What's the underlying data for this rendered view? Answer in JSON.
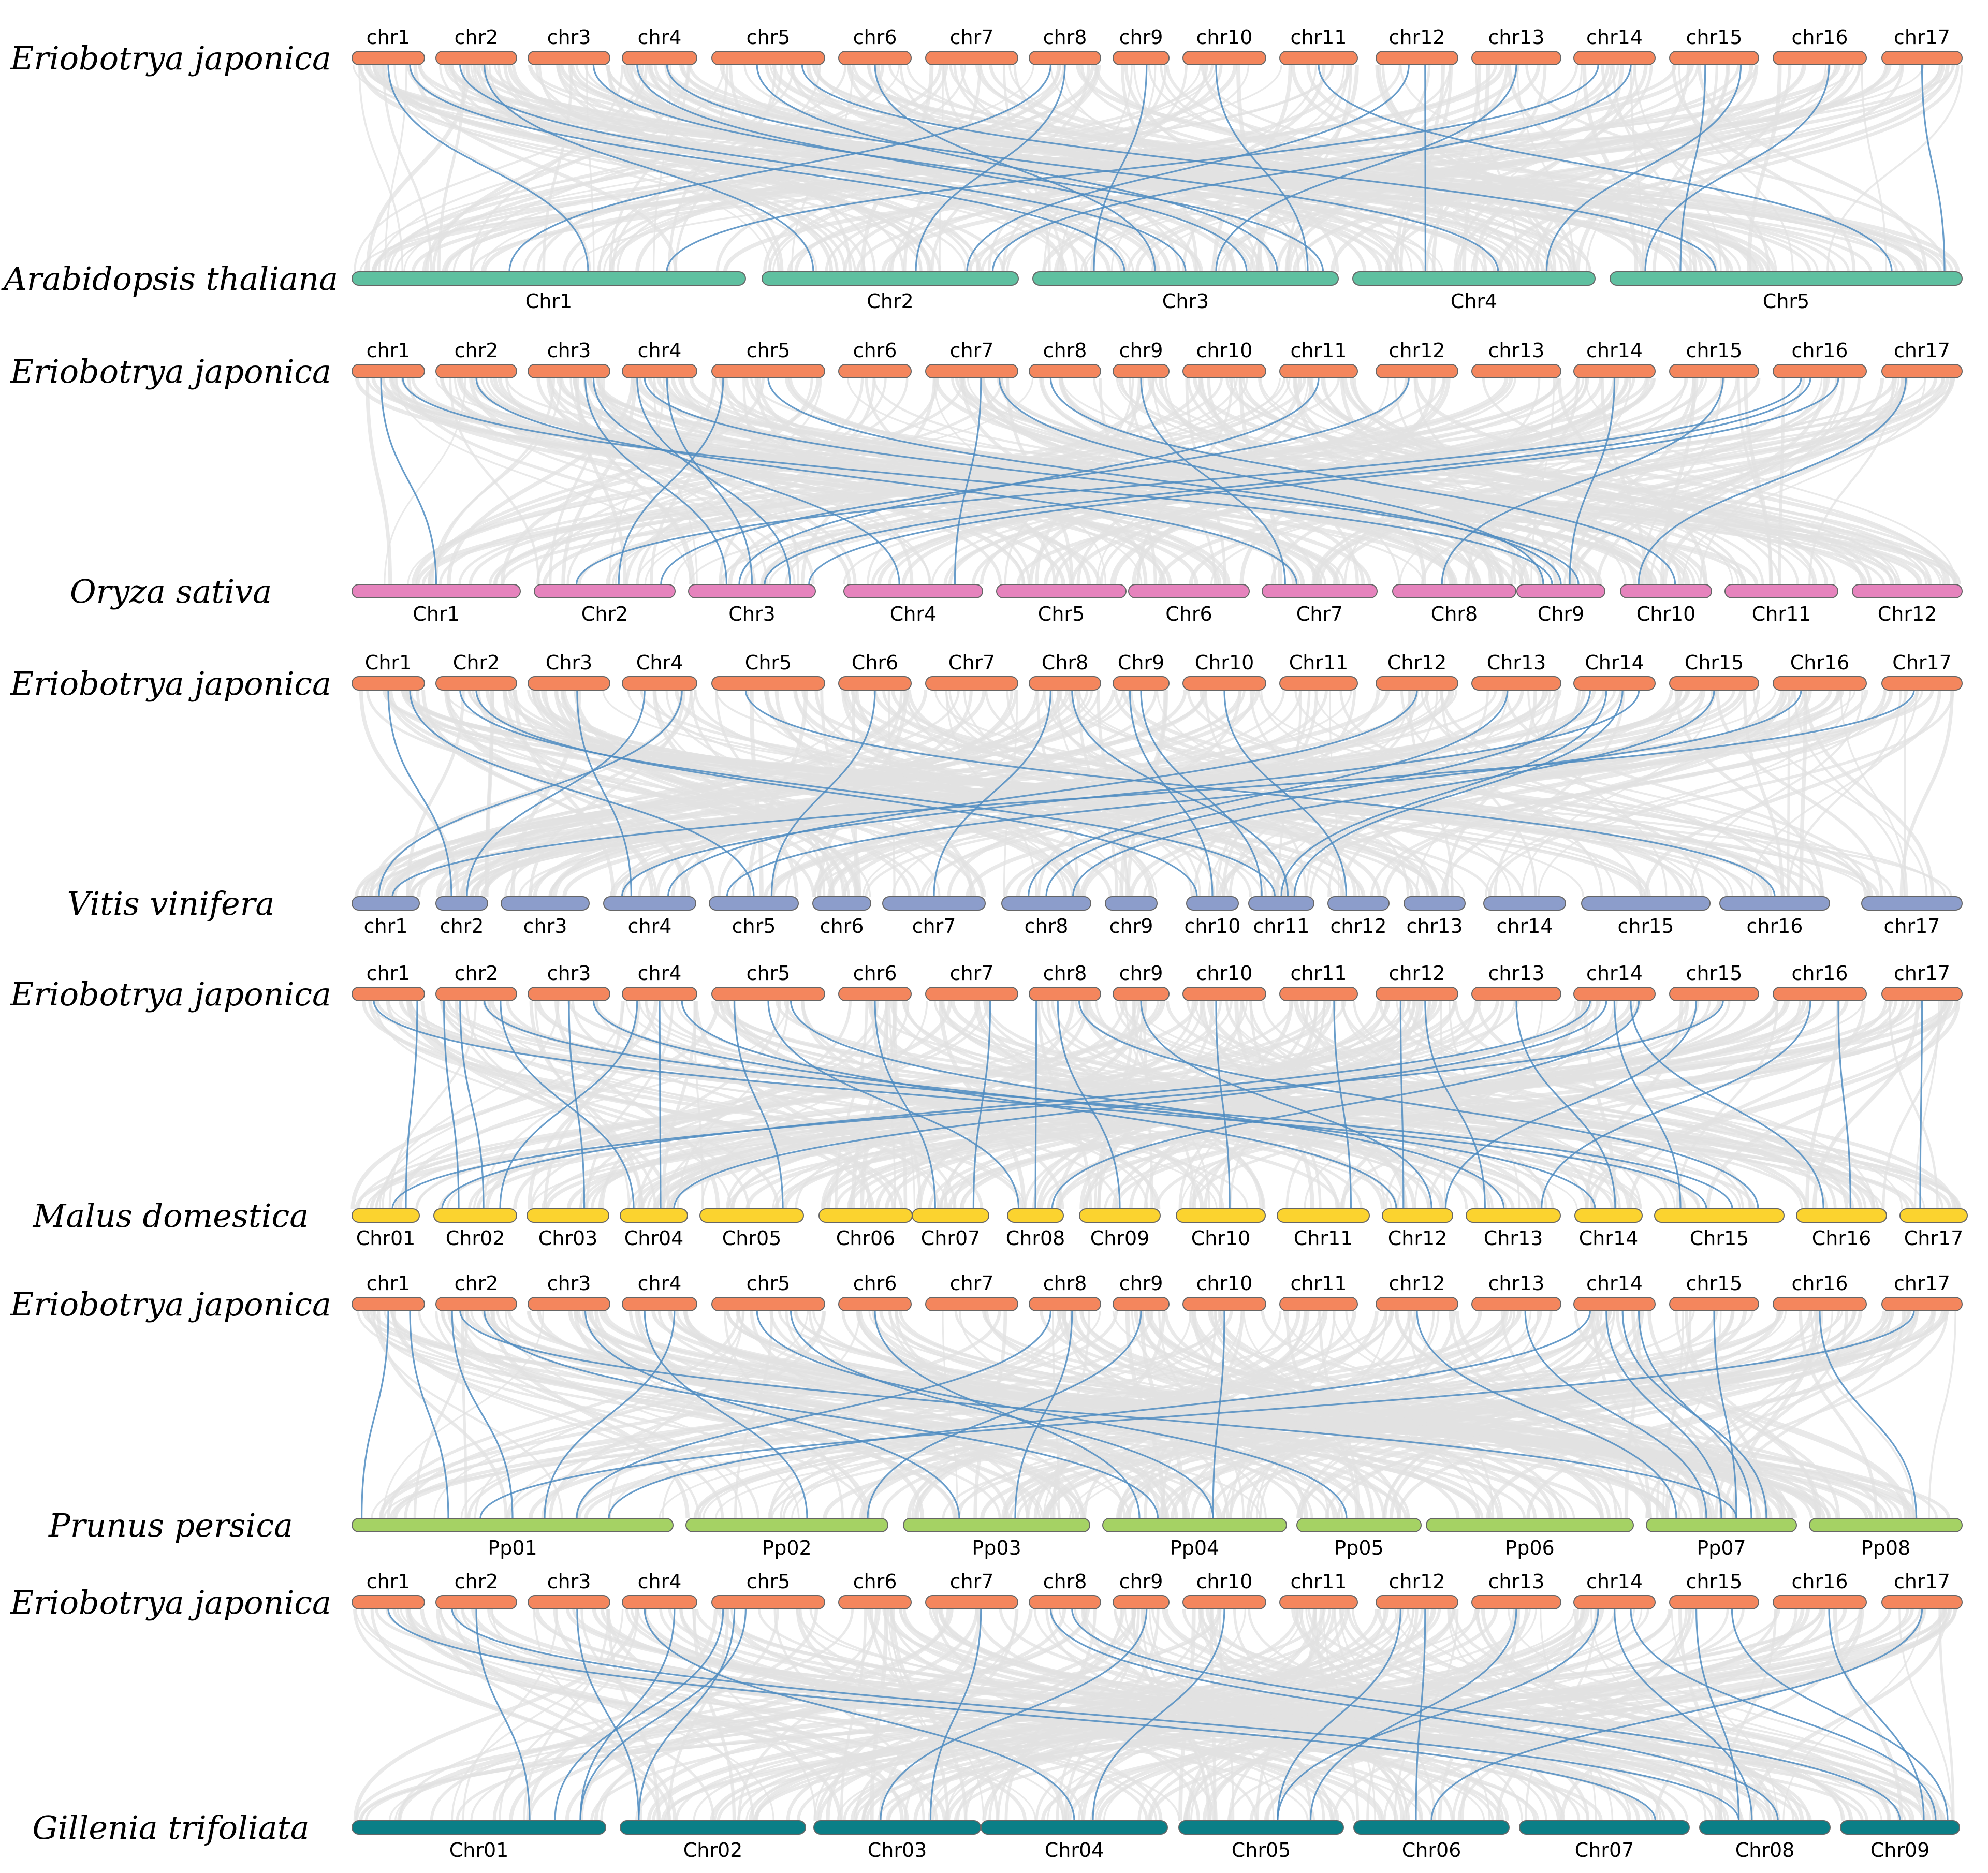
{
  "palette": {
    "background_link": "#e2e2e2",
    "highlight_link": "#4f8cc1",
    "bar_stroke": "#666666"
  },
  "panels": [
    {
      "top_species": "Eriobotrya japonica",
      "bottom_species": "Arabidopsis thaliana",
      "top_color": "#f4865d",
      "bottom_color": "#5fc0a0",
      "top_chromosomes": [
        "chr1",
        "chr2",
        "chr3",
        "chr4",
        "chr5",
        "chr6",
        "chr7",
        "chr8",
        "chr9",
        "chr10",
        "chr11",
        "chr12",
        "chr13",
        "chr14",
        "chr15",
        "chr16",
        "chr17"
      ],
      "bottom_chromosomes": [
        "Chr1",
        "Chr2",
        "Chr3",
        "Chr4",
        "Chr5"
      ],
      "links": [
        [
          0,
          0.5,
          0,
          0.6
        ],
        [
          0,
          0.8,
          2,
          0.3
        ],
        [
          1,
          0.3,
          2,
          0.5
        ],
        [
          1,
          0.6,
          1,
          0.2
        ],
        [
          3,
          0.2,
          2,
          0.7
        ],
        [
          3,
          0.6,
          3,
          0.6
        ],
        [
          4,
          0.4,
          2,
          0.8
        ],
        [
          4,
          0.8,
          4,
          0.3
        ],
        [
          5,
          0.5,
          2,
          0.4
        ],
        [
          7,
          0.5,
          1,
          0.6
        ],
        [
          7,
          0.3,
          0,
          0.4
        ],
        [
          8,
          0.6,
          2,
          0.2
        ],
        [
          9,
          0.4,
          2,
          0.9
        ],
        [
          10,
          0.5,
          4,
          0.8
        ],
        [
          11,
          0.6,
          3,
          0.3
        ],
        [
          11,
          0.4,
          1,
          0.8
        ],
        [
          12,
          0.5,
          2,
          0.6
        ],
        [
          13,
          0.3,
          0,
          0.8
        ],
        [
          13,
          0.7,
          1,
          0.9
        ],
        [
          14,
          0.4,
          4,
          0.2
        ],
        [
          14,
          0.8,
          3,
          0.8
        ],
        [
          15,
          0.6,
          4,
          0.1
        ],
        [
          16,
          0.5,
          4,
          0.95
        ],
        [
          2,
          0.8,
          2,
          0.95
        ]
      ]
    },
    {
      "top_species": "Eriobotrya japonica",
      "bottom_species": "Oryza sativa",
      "top_color": "#f4865d",
      "bottom_color": "#e683bd",
      "top_chromosomes": [
        "chr1",
        "chr2",
        "chr3",
        "chr4",
        "chr5",
        "chr6",
        "chr7",
        "chr8",
        "chr9",
        "chr10",
        "chr11",
        "chr12",
        "chr13",
        "chr14",
        "chr15",
        "chr16",
        "chr17"
      ],
      "bottom_chromosomes": [
        "Chr1",
        "Chr2",
        "Chr3",
        "Chr4",
        "Chr5",
        "Chr6",
        "Chr7",
        "Chr8",
        "Chr9",
        "Chr10",
        "Chr11",
        "Chr12"
      ],
      "links": [
        [
          0,
          0.7,
          8,
          0.4
        ],
        [
          0,
          0.4,
          0,
          0.5
        ],
        [
          1,
          0.5,
          6,
          0.3
        ],
        [
          2,
          0.7,
          2,
          0.3
        ],
        [
          2,
          0.8,
          3,
          0.4
        ],
        [
          3,
          0.2,
          2,
          0.8
        ],
        [
          3,
          0.3,
          8,
          0.7
        ],
        [
          3,
          0.6,
          2,
          0.5
        ],
        [
          4,
          0.1,
          1,
          0.6
        ],
        [
          4,
          0.5,
          8,
          0.5
        ],
        [
          6,
          0.6,
          3,
          0.8
        ],
        [
          6,
          0.8,
          8,
          0.3
        ],
        [
          7,
          0.3,
          9,
          0.6
        ],
        [
          8,
          0.5,
          6,
          0.2
        ],
        [
          10,
          0.5,
          2,
          0.4
        ],
        [
          11,
          0.4,
          1,
          0.9
        ],
        [
          13,
          0.5,
          8,
          0.6
        ],
        [
          14,
          0.6,
          7,
          0.4
        ],
        [
          15,
          0.4,
          2,
          0.6
        ],
        [
          15,
          0.3,
          1,
          0.3
        ],
        [
          15,
          0.7,
          2,
          0.95
        ],
        [
          16,
          0.3,
          9,
          0.2
        ]
      ]
    },
    {
      "top_species": "Eriobotrya japonica",
      "bottom_species": "Vitis vinifera",
      "top_color": "#f4865d",
      "bottom_color": "#8c9dcb",
      "top_chromosomes": [
        "Chr1",
        "Chr2",
        "Chr3",
        "Chr4",
        "Chr5",
        "Chr6",
        "Chr7",
        "Chr8",
        "Chr9",
        "Chr10",
        "Chr11",
        "Chr12",
        "Chr13",
        "Chr14",
        "Chr15",
        "Chr16",
        "Chr17"
      ],
      "bottom_chromosomes": [
        "chr1",
        "chr2",
        "chr3",
        "chr4",
        "chr5",
        "chr6",
        "chr7",
        "chr8",
        "chr9",
        "chr10",
        "chr11",
        "chr12",
        "chr13",
        "chr14",
        "chr15",
        "chr16",
        "chr17"
      ],
      "links": [
        [
          0,
          0.5,
          1,
          0.3
        ],
        [
          0,
          0.8,
          4,
          0.5
        ],
        [
          1,
          0.3,
          10,
          0.4
        ],
        [
          1,
          0.5,
          9,
          0.2
        ],
        [
          2,
          0.6,
          3,
          0.3
        ],
        [
          3,
          0.3,
          1,
          0.6
        ],
        [
          3,
          0.8,
          0,
          0.4
        ],
        [
          4,
          0.3,
          15,
          0.5
        ],
        [
          5,
          0.5,
          4,
          0.7
        ],
        [
          7,
          0.3,
          6,
          0.5
        ],
        [
          7,
          0.6,
          10,
          0.6
        ],
        [
          8,
          0.3,
          9,
          0.5
        ],
        [
          8,
          0.5,
          10,
          0.2
        ],
        [
          9,
          0.5,
          11,
          0.3
        ],
        [
          11,
          0.5,
          3,
          0.7
        ],
        [
          12,
          0.4,
          7,
          0.3
        ],
        [
          13,
          0.2,
          7,
          0.5
        ],
        [
          13,
          0.4,
          10,
          0.5
        ],
        [
          13,
          0.6,
          10,
          0.7
        ],
        [
          13,
          0.8,
          3,
          0.2
        ],
        [
          14,
          0.5,
          7,
          0.8
        ],
        [
          15,
          0.3,
          4,
          0.2
        ],
        [
          16,
          0.4,
          0,
          0.6
        ]
      ]
    },
    {
      "top_species": "Eriobotrya japonica",
      "bottom_species": "Malus domestica",
      "top_color": "#f4865d",
      "bottom_color": "#fbd32f",
      "top_chromosomes": [
        "chr1",
        "chr2",
        "chr3",
        "chr4",
        "chr5",
        "chr6",
        "chr7",
        "chr8",
        "chr9",
        "chr10",
        "chr11",
        "chr12",
        "chr13",
        "chr14",
        "chr15",
        "chr16",
        "chr17"
      ],
      "bottom_chromosomes": [
        "Chr01",
        "Chr02",
        "Chr03",
        "Chr04",
        "Chr05",
        "Chr06",
        "Chr07",
        "Chr08",
        "Chr09",
        "Chr10",
        "Chr11",
        "Chr12",
        "Chr13",
        "Chr14",
        "Chr15",
        "Chr16",
        "Chr17"
      ],
      "links": [
        [
          0,
          0.9,
          0,
          0.8
        ],
        [
          0,
          0.3,
          14,
          0.4
        ],
        [
          1,
          0.1,
          1,
          0.3
        ],
        [
          1,
          0.3,
          1,
          0.6
        ],
        [
          1,
          0.6,
          14,
          0.6
        ],
        [
          1,
          0.8,
          3,
          0.2
        ],
        [
          2,
          0.5,
          2,
          0.7
        ],
        [
          2,
          0.8,
          13,
          0.3
        ],
        [
          3,
          0.2,
          1,
          0.8
        ],
        [
          3,
          0.5,
          3,
          0.6
        ],
        [
          3,
          0.8,
          11,
          0.2
        ],
        [
          4,
          0.2,
          4,
          0.8
        ],
        [
          4,
          0.5,
          7,
          0.2
        ],
        [
          4,
          0.7,
          12,
          0.4
        ],
        [
          5,
          0.5,
          6,
          0.3
        ],
        [
          6,
          0.7,
          6,
          0.8
        ],
        [
          7,
          0.1,
          7,
          0.5
        ],
        [
          7,
          0.4,
          8,
          0.5
        ],
        [
          7,
          0.7,
          14,
          0.8
        ],
        [
          8,
          0.5,
          11,
          0.7
        ],
        [
          9,
          0.4,
          9,
          0.6
        ],
        [
          10,
          0.7,
          10,
          0.8
        ],
        [
          11,
          0.3,
          11,
          0.3
        ],
        [
          11,
          0.6,
          12,
          0.2
        ],
        [
          12,
          0.5,
          13,
          0.6
        ],
        [
          13,
          0.2,
          1,
          0.1
        ],
        [
          13,
          0.4,
          3,
          0.8
        ],
        [
          13,
          0.5,
          14,
          0.2
        ],
        [
          13,
          0.7,
          15,
          0.3
        ],
        [
          13,
          0.8,
          7,
          0.8
        ],
        [
          14,
          0.3,
          11,
          0.9
        ],
        [
          14,
          0.6,
          0,
          0.6
        ],
        [
          15,
          0.4,
          12,
          0.8
        ],
        [
          15,
          0.7,
          15,
          0.6
        ],
        [
          16,
          0.5,
          16,
          0.3
        ]
      ]
    },
    {
      "top_species": "Eriobotrya japonica",
      "bottom_species": "Prunus persica",
      "top_color": "#f4865d",
      "bottom_color": "#a5d264",
      "top_chromosomes": [
        "chr1",
        "chr2",
        "chr3",
        "chr4",
        "chr5",
        "chr6",
        "chr7",
        "chr8",
        "chr9",
        "chr10",
        "chr11",
        "chr12",
        "chr13",
        "chr14",
        "chr15",
        "chr16",
        "chr17"
      ],
      "bottom_chromosomes": [
        "Pp01",
        "Pp02",
        "Pp03",
        "Pp04",
        "Pp05",
        "Pp06",
        "Pp07",
        "Pp08"
      ],
      "links": [
        [
          0,
          0.5,
          0,
          0.03
        ],
        [
          0,
          0.8,
          0,
          0.3
        ],
        [
          1,
          0.3,
          6,
          0.6
        ],
        [
          1,
          0.6,
          3,
          0.3
        ],
        [
          1,
          0.2,
          0,
          0.5
        ],
        [
          2,
          0.7,
          2,
          0.3
        ],
        [
          3,
          0.3,
          1,
          0.6
        ],
        [
          3,
          0.7,
          0,
          0.6
        ],
        [
          4,
          0.4,
          4,
          0.4
        ],
        [
          4,
          0.7,
          3,
          0.6
        ],
        [
          5,
          0.5,
          3,
          0.2
        ],
        [
          7,
          0.3,
          0,
          0.7
        ],
        [
          7,
          0.6,
          2,
          0.6
        ],
        [
          8,
          0.5,
          1,
          0.9
        ],
        [
          9,
          0.5,
          3,
          0.6
        ],
        [
          11,
          0.5,
          6,
          0.2
        ],
        [
          12,
          0.6,
          6,
          0.4
        ],
        [
          13,
          0.2,
          0,
          0.8
        ],
        [
          13,
          0.4,
          6,
          0.5
        ],
        [
          13,
          0.6,
          6,
          0.8
        ],
        [
          13,
          0.8,
          6,
          0.7
        ],
        [
          14,
          0.5,
          6,
          0.6
        ],
        [
          15,
          0.5,
          7,
          0.7
        ],
        [
          16,
          0.4,
          0,
          0.4
        ]
      ]
    },
    {
      "top_species": "Eriobotrya japonica",
      "bottom_species": "Gillenia trifoliata",
      "top_color": "#f4865d",
      "bottom_color": "#0a7f87",
      "top_chromosomes": [
        "chr1",
        "chr2",
        "chr3",
        "chr4",
        "chr5",
        "chr6",
        "chr7",
        "chr8",
        "chr9",
        "chr10",
        "chr11",
        "chr12",
        "chr13",
        "chr14",
        "chr15",
        "chr16",
        "chr17"
      ],
      "bottom_chromosomes": [
        "Chr01",
        "Chr02",
        "Chr03",
        "Chr04",
        "Chr05",
        "Chr06",
        "Chr07",
        "Chr08",
        "Chr09"
      ],
      "links": [
        [
          0,
          0.5,
          6,
          0.8
        ],
        [
          1,
          0.2,
          7,
          0.3
        ],
        [
          1,
          0.5,
          0,
          0.7
        ],
        [
          2,
          0.6,
          1,
          0.1
        ],
        [
          3,
          0.3,
          3,
          0.5
        ],
        [
          3,
          0.7,
          0,
          0.9
        ],
        [
          4,
          0.1,
          0,
          0.8
        ],
        [
          4,
          0.2,
          1,
          0.1
        ],
        [
          4,
          0.3,
          0,
          0.9
        ],
        [
          6,
          0.6,
          2,
          0.7
        ],
        [
          7,
          0.3,
          7,
          0.6
        ],
        [
          7,
          0.6,
          8,
          0.5
        ],
        [
          8,
          0.6,
          2,
          0.4
        ],
        [
          9,
          0.5,
          3,
          0.6
        ],
        [
          11,
          0.3,
          4,
          0.6
        ],
        [
          11,
          0.6,
          5,
          0.4
        ],
        [
          12,
          0.5,
          4,
          0.8
        ],
        [
          13,
          0.3,
          4,
          0.6
        ],
        [
          13,
          0.5,
          7,
          0.4
        ],
        [
          13,
          0.7,
          8,
          0.8
        ],
        [
          14,
          0.3,
          7,
          0.3
        ],
        [
          14,
          0.7,
          8,
          0.9
        ],
        [
          15,
          0.6,
          8,
          0.7
        ],
        [
          16,
          0.5,
          5,
          0.5
        ]
      ]
    }
  ]
}
